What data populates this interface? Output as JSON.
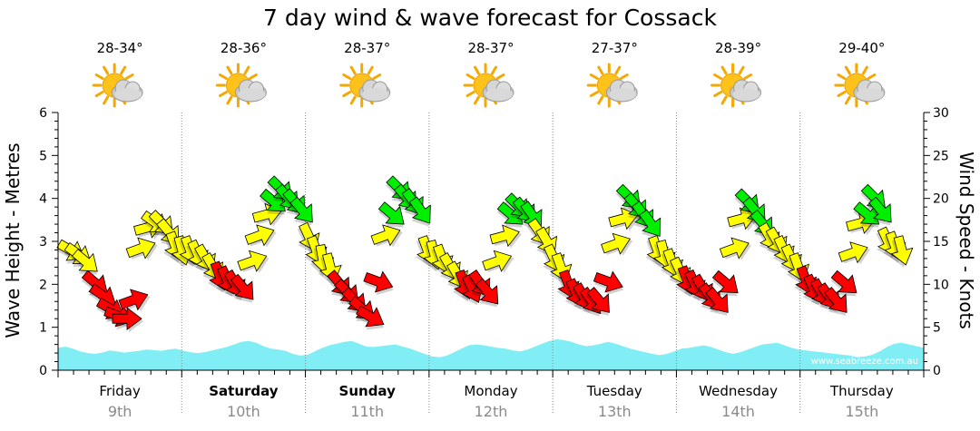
{
  "chart_data": {
    "type": "line",
    "title": "7 day wind & wave forecast for Cossack",
    "y_left": {
      "label": "Wave Height - Metres",
      "range": [
        0,
        6
      ],
      "ticks": [
        0,
        1,
        2,
        3,
        4,
        5,
        6
      ]
    },
    "y_right": {
      "label": "Wind Speed - Knots",
      "range": [
        0,
        30
      ],
      "ticks": [
        0,
        5,
        10,
        15,
        20,
        25,
        30
      ]
    },
    "grid": "dotted vertical day separators",
    "credit": "www.seabreeze.com.au",
    "days": [
      {
        "name": "Friday",
        "date": "9th",
        "bold": false,
        "temp": "28-34°",
        "weather_icon": "sun-cloud-icon"
      },
      {
        "name": "Saturday",
        "date": "10th",
        "bold": true,
        "temp": "28-36°",
        "weather_icon": "sun-cloud-icon"
      },
      {
        "name": "Sunday",
        "date": "11th",
        "bold": true,
        "temp": "28-37°",
        "weather_icon": "sun-cloud-icon"
      },
      {
        "name": "Monday",
        "date": "12th",
        "bold": false,
        "temp": "28-37°",
        "weather_icon": "sun-cloud-icon"
      },
      {
        "name": "Tuesday",
        "date": "13th",
        "bold": false,
        "temp": "27-37°",
        "weather_icon": "sun-cloud-icon"
      },
      {
        "name": "Wednesday",
        "date": "14th",
        "bold": false,
        "temp": "28-39°",
        "weather_icon": "sun-cloud-icon"
      },
      {
        "name": "Thursday",
        "date": "15th",
        "bold": false,
        "temp": "29-40°",
        "weather_icon": "sun-cloud-icon"
      }
    ],
    "series": [
      {
        "name": "Wave Height",
        "units": "m",
        "color": "#80eef4",
        "values": [
          0.52,
          0.55,
          0.5,
          0.44,
          0.4,
          0.38,
          0.41,
          0.46,
          0.44,
          0.41,
          0.43,
          0.45,
          0.48,
          0.47,
          0.45,
          0.48,
          0.5,
          0.46,
          0.42,
          0.4,
          0.42,
          0.46,
          0.5,
          0.54,
          0.6,
          0.66,
          0.68,
          0.64,
          0.56,
          0.5,
          0.48,
          0.45,
          0.38,
          0.34,
          0.36,
          0.44,
          0.52,
          0.58,
          0.62,
          0.66,
          0.68,
          0.62,
          0.55,
          0.54,
          0.56,
          0.58,
          0.6,
          0.55,
          0.5,
          0.44,
          0.38,
          0.32,
          0.3,
          0.34,
          0.42,
          0.5,
          0.58,
          0.6,
          0.58,
          0.55,
          0.52,
          0.5,
          0.46,
          0.44,
          0.48,
          0.55,
          0.62,
          0.68,
          0.72,
          0.7,
          0.66,
          0.6,
          0.56,
          0.58,
          0.62,
          0.66,
          0.62,
          0.56,
          0.5,
          0.46,
          0.42,
          0.38,
          0.35,
          0.38,
          0.44,
          0.5,
          0.52,
          0.55,
          0.58,
          0.54,
          0.48,
          0.42,
          0.38,
          0.42,
          0.48,
          0.54,
          0.6,
          0.62,
          0.64,
          0.58,
          0.52,
          0.48,
          0.46,
          0.44,
          0.42,
          0.4,
          0.38,
          0.36,
          0.34,
          0.3,
          0.32,
          0.36,
          0.44,
          0.54,
          0.62,
          0.64,
          0.6,
          0.56,
          0.52
        ]
      },
      {
        "name": "Wind Speed",
        "units": "knots",
        "note": "arrows point downwind; red < ~11 kn, yellow ~11-19 kn, green > ~19 kn",
        "points": [
          {
            "time": 0.0,
            "speed": 14.2,
            "dir": 30,
            "color": "yellow"
          },
          {
            "time": 0.06,
            "speed": 13.8,
            "dir": 35,
            "color": "yellow"
          },
          {
            "time": 0.12,
            "speed": 13.0,
            "dir": 40,
            "color": "yellow"
          },
          {
            "time": 0.2,
            "speed": 10.5,
            "dir": 40,
            "color": "red"
          },
          {
            "time": 0.26,
            "speed": 9.0,
            "dir": 35,
            "color": "red"
          },
          {
            "time": 0.32,
            "speed": 7.4,
            "dir": 30,
            "color": "red"
          },
          {
            "time": 0.38,
            "speed": 6.5,
            "dir": 20,
            "color": "red"
          },
          {
            "time": 0.44,
            "speed": 6.0,
            "dir": 0,
            "color": "red"
          },
          {
            "time": 0.5,
            "speed": 8.0,
            "dir": 340,
            "color": "red"
          },
          {
            "time": 0.56,
            "speed": 14.0,
            "dir": 340,
            "color": "yellow"
          },
          {
            "time": 0.62,
            "speed": 16.5,
            "dir": 345,
            "color": "yellow"
          },
          {
            "time": 0.68,
            "speed": 17.5,
            "dir": 35,
            "color": "yellow"
          },
          {
            "time": 0.74,
            "speed": 17.5,
            "dir": 45,
            "color": "yellow"
          },
          {
            "time": 0.8,
            "speed": 16.5,
            "dir": 50,
            "color": "yellow"
          },
          {
            "time": 0.86,
            "speed": 15.0,
            "dir": 70,
            "color": "yellow"
          },
          {
            "time": 0.92,
            "speed": 14.5,
            "dir": 75,
            "color": "yellow"
          },
          {
            "time": 0.98,
            "speed": 14.5,
            "dir": 70,
            "color": "yellow"
          },
          {
            "time": 1.04,
            "speed": 14.0,
            "dir": 65,
            "color": "yellow"
          },
          {
            "time": 1.1,
            "speed": 13.5,
            "dir": 60,
            "color": "yellow"
          },
          {
            "time": 1.16,
            "speed": 12.5,
            "dir": 60,
            "color": "yellow"
          },
          {
            "time": 1.22,
            "speed": 11.5,
            "dir": 70,
            "color": "red"
          },
          {
            "time": 1.28,
            "speed": 11.0,
            "dir": 65,
            "color": "red"
          },
          {
            "time": 1.34,
            "speed": 10.5,
            "dir": 60,
            "color": "red"
          },
          {
            "time": 1.4,
            "speed": 10.0,
            "dir": 50,
            "color": "red"
          },
          {
            "time": 1.46,
            "speed": 12.5,
            "dir": 340,
            "color": "yellow"
          },
          {
            "time": 1.52,
            "speed": 15.5,
            "dir": 340,
            "color": "yellow"
          },
          {
            "time": 1.58,
            "speed": 18.0,
            "dir": 345,
            "color": "yellow"
          },
          {
            "time": 1.64,
            "speed": 20.0,
            "dir": 40,
            "color": "green"
          },
          {
            "time": 1.7,
            "speed": 21.5,
            "dir": 45,
            "color": "green"
          },
          {
            "time": 1.76,
            "speed": 20.5,
            "dir": 50,
            "color": "green"
          },
          {
            "time": 1.82,
            "speed": 20.0,
            "dir": 50,
            "color": "green"
          },
          {
            "time": 1.88,
            "speed": 19.0,
            "dir": 50,
            "color": "green"
          },
          {
            "time": 1.94,
            "speed": 16.0,
            "dir": 65,
            "color": "yellow"
          },
          {
            "time": 2.0,
            "speed": 14.5,
            "dir": 70,
            "color": "yellow"
          },
          {
            "time": 2.06,
            "speed": 13.5,
            "dir": 80,
            "color": "yellow"
          },
          {
            "time": 2.12,
            "speed": 12.5,
            "dir": 75,
            "color": "yellow"
          },
          {
            "time": 2.18,
            "speed": 10.5,
            "dir": 50,
            "color": "red"
          },
          {
            "time": 2.24,
            "speed": 9.5,
            "dir": 45,
            "color": "red"
          },
          {
            "time": 2.3,
            "speed": 8.5,
            "dir": 45,
            "color": "red"
          },
          {
            "time": 2.36,
            "speed": 7.5,
            "dir": 40,
            "color": "red"
          },
          {
            "time": 2.42,
            "speed": 6.5,
            "dir": 30,
            "color": "red"
          },
          {
            "time": 2.48,
            "speed": 10.5,
            "dir": 20,
            "color": "red"
          },
          {
            "time": 2.54,
            "speed": 15.5,
            "dir": 340,
            "color": "yellow"
          },
          {
            "time": 2.6,
            "speed": 18.5,
            "dir": 40,
            "color": "green"
          },
          {
            "time": 2.66,
            "speed": 21.5,
            "dir": 45,
            "color": "green"
          },
          {
            "time": 2.72,
            "speed": 20.5,
            "dir": 50,
            "color": "green"
          },
          {
            "time": 2.78,
            "speed": 20.0,
            "dir": 55,
            "color": "green"
          },
          {
            "time": 2.84,
            "speed": 19.0,
            "dir": 55,
            "color": "green"
          },
          {
            "time": 2.9,
            "speed": 14.5,
            "dir": 70,
            "color": "yellow"
          },
          {
            "time": 2.96,
            "speed": 14.0,
            "dir": 75,
            "color": "yellow"
          },
          {
            "time": 3.02,
            "speed": 13.5,
            "dir": 70,
            "color": "yellow"
          },
          {
            "time": 3.08,
            "speed": 12.5,
            "dir": 60,
            "color": "yellow"
          },
          {
            "time": 3.14,
            "speed": 11.5,
            "dir": 60,
            "color": "yellow"
          },
          {
            "time": 3.2,
            "speed": 10.5,
            "dir": 70,
            "color": "red"
          },
          {
            "time": 3.26,
            "speed": 10.0,
            "dir": 65,
            "color": "red"
          },
          {
            "time": 3.32,
            "speed": 10.5,
            "dir": 55,
            "color": "red"
          },
          {
            "time": 3.38,
            "speed": 9.5,
            "dir": 50,
            "color": "red"
          },
          {
            "time": 3.44,
            "speed": 12.5,
            "dir": 340,
            "color": "yellow"
          },
          {
            "time": 3.5,
            "speed": 15.5,
            "dir": 345,
            "color": "yellow"
          },
          {
            "time": 3.56,
            "speed": 18.5,
            "dir": 40,
            "color": "green"
          },
          {
            "time": 3.62,
            "speed": 19.5,
            "dir": 45,
            "color": "green"
          },
          {
            "time": 3.68,
            "speed": 19.0,
            "dir": 50,
            "color": "green"
          },
          {
            "time": 3.74,
            "speed": 18.5,
            "dir": 55,
            "color": "green"
          },
          {
            "time": 3.8,
            "speed": 16.5,
            "dir": 55,
            "color": "yellow"
          },
          {
            "time": 3.86,
            "speed": 15.5,
            "dir": 60,
            "color": "yellow"
          },
          {
            "time": 3.92,
            "speed": 13.5,
            "dir": 65,
            "color": "yellow"
          },
          {
            "time": 3.98,
            "speed": 12.5,
            "dir": 70,
            "color": "yellow"
          },
          {
            "time": 4.04,
            "speed": 10.5,
            "dir": 70,
            "color": "red"
          },
          {
            "time": 4.1,
            "speed": 9.5,
            "dir": 65,
            "color": "red"
          },
          {
            "time": 4.16,
            "speed": 9.0,
            "dir": 60,
            "color": "red"
          },
          {
            "time": 4.22,
            "speed": 8.5,
            "dir": 55,
            "color": "red"
          },
          {
            "time": 4.28,
            "speed": 8.5,
            "dir": 50,
            "color": "red"
          },
          {
            "time": 4.34,
            "speed": 10.5,
            "dir": 20,
            "color": "red"
          },
          {
            "time": 4.4,
            "speed": 14.5,
            "dir": 340,
            "color": "yellow"
          },
          {
            "time": 4.46,
            "speed": 17.5,
            "dir": 345,
            "color": "yellow"
          },
          {
            "time": 4.52,
            "speed": 20.5,
            "dir": 45,
            "color": "green"
          },
          {
            "time": 4.58,
            "speed": 19.5,
            "dir": 50,
            "color": "green"
          },
          {
            "time": 4.64,
            "speed": 18.5,
            "dir": 55,
            "color": "green"
          },
          {
            "time": 4.7,
            "speed": 17.5,
            "dir": 55,
            "color": "green"
          },
          {
            "time": 4.76,
            "speed": 14.5,
            "dir": 70,
            "color": "yellow"
          },
          {
            "time": 4.82,
            "speed": 14.0,
            "dir": 75,
            "color": "yellow"
          },
          {
            "time": 4.88,
            "speed": 13.0,
            "dir": 70,
            "color": "yellow"
          },
          {
            "time": 4.94,
            "speed": 12.0,
            "dir": 65,
            "color": "yellow"
          },
          {
            "time": 5.0,
            "speed": 11.0,
            "dir": 70,
            "color": "red"
          },
          {
            "time": 5.06,
            "speed": 10.5,
            "dir": 65,
            "color": "red"
          },
          {
            "time": 5.12,
            "speed": 10.0,
            "dir": 60,
            "color": "red"
          },
          {
            "time": 5.18,
            "speed": 9.0,
            "dir": 55,
            "color": "red"
          },
          {
            "time": 5.24,
            "speed": 8.5,
            "dir": 50,
            "color": "red"
          },
          {
            "time": 5.3,
            "speed": 10.5,
            "dir": 40,
            "color": "red"
          },
          {
            "time": 5.36,
            "speed": 14.0,
            "dir": 340,
            "color": "yellow"
          },
          {
            "time": 5.42,
            "speed": 17.5,
            "dir": 345,
            "color": "yellow"
          },
          {
            "time": 5.48,
            "speed": 20.0,
            "dir": 45,
            "color": "green"
          },
          {
            "time": 5.54,
            "speed": 19.0,
            "dir": 50,
            "color": "green"
          },
          {
            "time": 5.6,
            "speed": 17.5,
            "dir": 50,
            "color": "green"
          },
          {
            "time": 5.66,
            "speed": 16.0,
            "dir": 60,
            "color": "yellow"
          },
          {
            "time": 5.72,
            "speed": 15.5,
            "dir": 60,
            "color": "yellow"
          },
          {
            "time": 5.78,
            "speed": 14.5,
            "dir": 65,
            "color": "yellow"
          },
          {
            "time": 5.84,
            "speed": 13.5,
            "dir": 65,
            "color": "yellow"
          },
          {
            "time": 5.9,
            "speed": 12.5,
            "dir": 70,
            "color": "yellow"
          },
          {
            "time": 5.96,
            "speed": 11.0,
            "dir": 70,
            "color": "red"
          },
          {
            "time": 6.02,
            "speed": 10.0,
            "dir": 65,
            "color": "red"
          },
          {
            "time": 6.08,
            "speed": 9.5,
            "dir": 60,
            "color": "red"
          },
          {
            "time": 6.14,
            "speed": 9.0,
            "dir": 55,
            "color": "red"
          },
          {
            "time": 6.2,
            "speed": 8.5,
            "dir": 50,
            "color": "red"
          },
          {
            "time": 6.26,
            "speed": 10.5,
            "dir": 40,
            "color": "red"
          },
          {
            "time": 6.32,
            "speed": 13.5,
            "dir": 340,
            "color": "yellow"
          },
          {
            "time": 6.38,
            "speed": 17.0,
            "dir": 345,
            "color": "yellow"
          },
          {
            "time": 6.44,
            "speed": 18.5,
            "dir": 40,
            "color": "green"
          },
          {
            "time": 6.5,
            "speed": 20.5,
            "dir": 45,
            "color": "green"
          },
          {
            "time": 6.56,
            "speed": 19.0,
            "dir": 50,
            "color": "green"
          },
          {
            "time": 6.62,
            "speed": 15.5,
            "dir": 65,
            "color": "yellow"
          },
          {
            "time": 6.68,
            "speed": 15.0,
            "dir": 70,
            "color": "yellow"
          },
          {
            "time": 6.74,
            "speed": 14.5,
            "dir": 75,
            "color": "yellow"
          }
        ]
      }
    ],
    "colors": {
      "red": "#ff0000",
      "yellow": "#ffff00",
      "green": "#00ee00",
      "wave": "#80eef4"
    }
  }
}
